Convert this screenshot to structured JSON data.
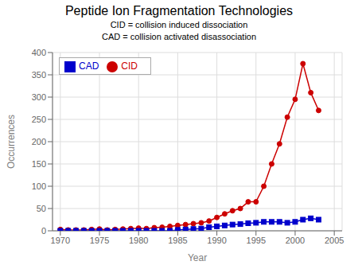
{
  "chart_data": {
    "type": "line",
    "title": "Peptide Ion Fragmentation Technologies",
    "subtitle": [
      "CID = collision induced dissociation",
      "CAD = collision activated disassociation"
    ],
    "xlabel": "Year",
    "ylabel": "Occurrences",
    "x": [
      1970,
      1971,
      1972,
      1973,
      1974,
      1975,
      1976,
      1977,
      1978,
      1979,
      1980,
      1981,
      1982,
      1983,
      1984,
      1985,
      1986,
      1987,
      1988,
      1989,
      1990,
      1991,
      1992,
      1993,
      1994,
      1995,
      1996,
      1997,
      1998,
      1999,
      2000,
      2001,
      2002,
      2003
    ],
    "series": [
      {
        "name": "CID",
        "color": "#cc0000",
        "marker": "circle",
        "values": [
          3,
          2,
          2,
          2,
          3,
          4,
          2,
          3,
          4,
          5,
          6,
          5,
          7,
          8,
          10,
          12,
          14,
          16,
          18,
          22,
          30,
          38,
          45,
          50,
          65,
          65,
          100,
          150,
          195,
          255,
          295,
          375,
          310,
          270
        ]
      },
      {
        "name": "CAD",
        "color": "#0000cc",
        "marker": "square",
        "values": [
          0,
          0,
          0,
          0,
          0,
          0,
          0,
          0,
          0,
          0,
          0,
          0,
          0,
          0,
          0,
          2,
          3,
          4,
          5,
          8,
          10,
          12,
          14,
          15,
          17,
          18,
          20,
          20,
          20,
          18,
          20,
          25,
          28,
          25
        ]
      }
    ],
    "xlim": [
      1969,
      2006
    ],
    "xticks": [
      1970,
      1975,
      1980,
      1985,
      1990,
      1995,
      2000,
      2005
    ],
    "ylim": [
      0,
      400
    ],
    "yticks": [
      0,
      50,
      100,
      150,
      200,
      250,
      300,
      350,
      400
    ],
    "grid": true,
    "legend": "upper left"
  }
}
